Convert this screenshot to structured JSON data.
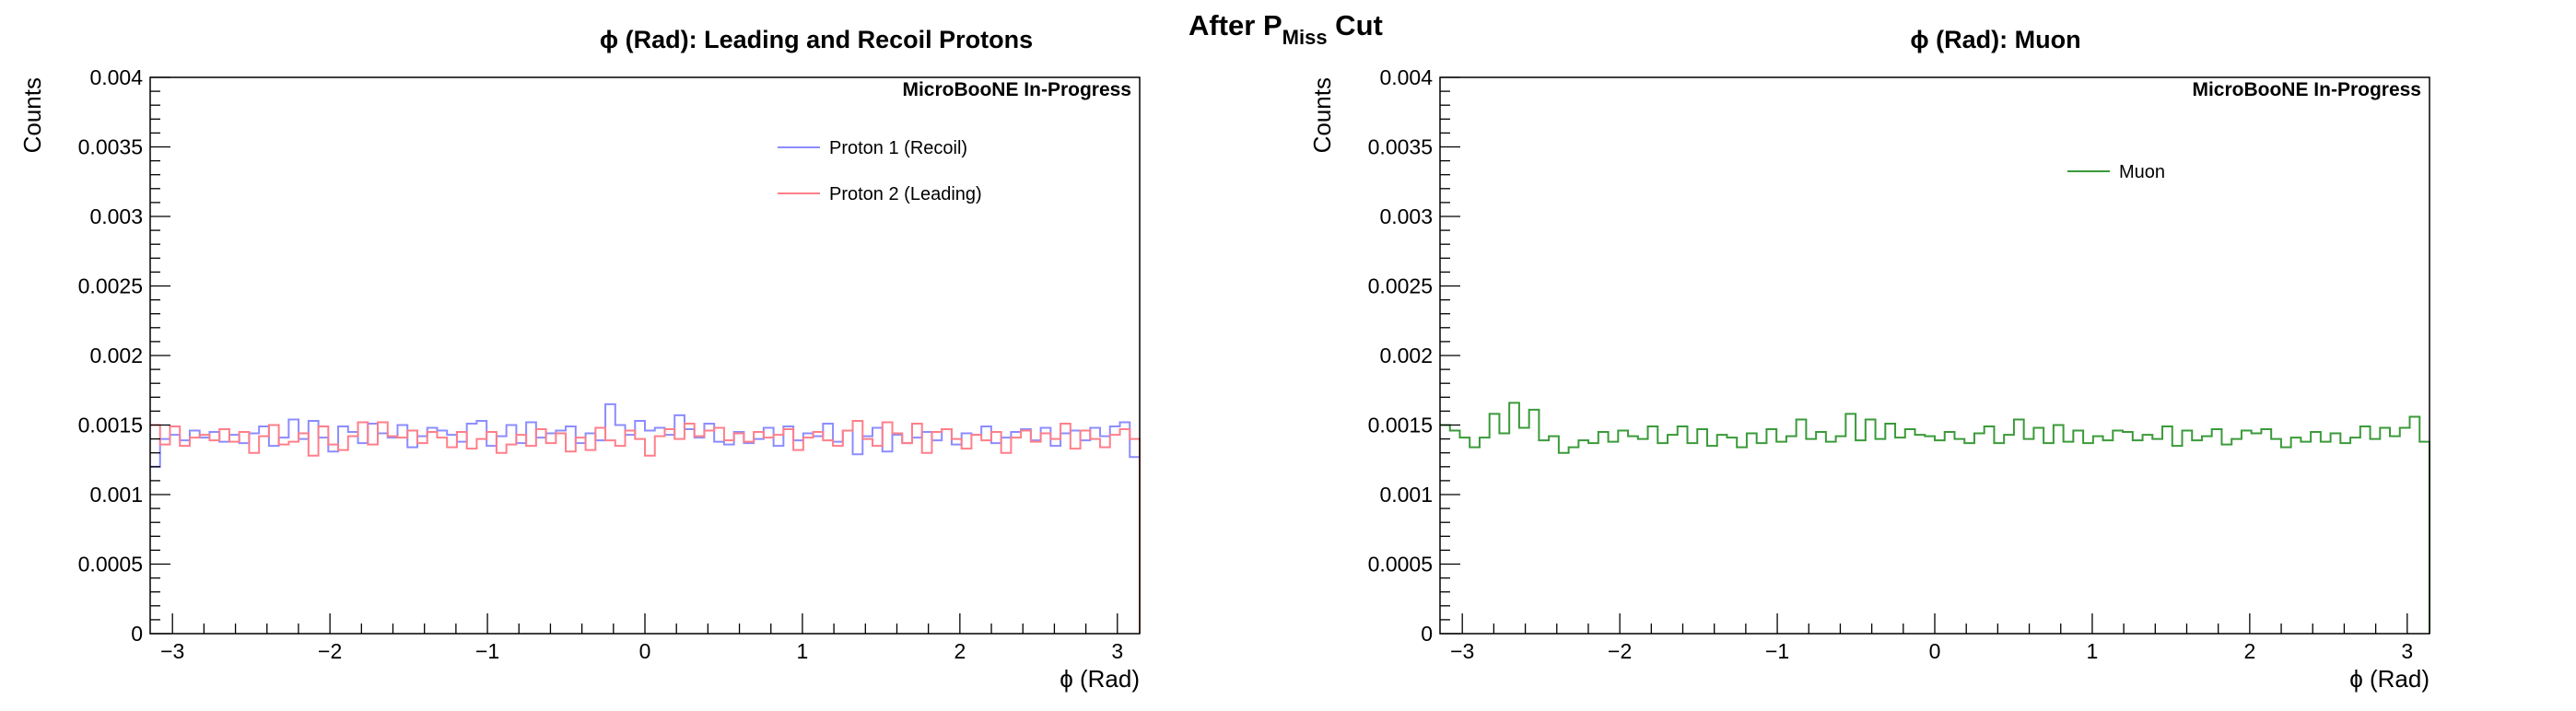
{
  "page": {
    "title_main": "After P",
    "title_sub": "Miss",
    "title_suffix": " Cut"
  },
  "colors": {
    "proton1": "#8c8cff",
    "proton2": "#ff7f8a",
    "muon": "#3a9a3a"
  },
  "chart_data": [
    {
      "type": "histogram",
      "title": "ϕ (Rad): Leading and Recoil Protons",
      "annotation": "MicroBooNE In-Progress",
      "xlabel": "ϕ (Rad)",
      "ylabel": "Counts",
      "xlim": [
        -3.14159,
        3.14159
      ],
      "ylim": [
        0,
        0.004
      ],
      "xticks": [
        -3,
        -2,
        -1,
        0,
        1,
        2,
        3
      ],
      "xtick_labels": [
        "−3",
        "−2",
        "−1",
        "0",
        "1",
        "2",
        "3"
      ],
      "yticks": [
        0,
        0.0005,
        0.001,
        0.0015,
        0.002,
        0.0025,
        0.003,
        0.0035,
        0.004
      ],
      "ytick_labels": [
        "0",
        "0.0005",
        "0.001",
        "0.0015",
        "0.002",
        "0.0025",
        "0.003",
        "0.0035",
        "0.004"
      ],
      "legend_position": "top-right",
      "series": [
        {
          "name": "Proton 1 (Recoil)",
          "color": "#8c8cff",
          "values": [
            0.0012,
            0.0014,
            0.00143,
            0.00139,
            0.00146,
            0.00141,
            0.00145,
            0.00138,
            0.00143,
            0.00137,
            0.00144,
            0.00149,
            0.00135,
            0.00141,
            0.00154,
            0.0014,
            0.00153,
            0.00141,
            0.00131,
            0.00149,
            0.00145,
            0.00137,
            0.00151,
            0.00144,
            0.00141,
            0.0015,
            0.00134,
            0.00142,
            0.00148,
            0.00146,
            0.00143,
            0.00138,
            0.00151,
            0.00153,
            0.00135,
            0.00142,
            0.0015,
            0.00137,
            0.00152,
            0.00141,
            0.00144,
            0.00146,
            0.00149,
            0.00137,
            0.00144,
            0.00139,
            0.00165,
            0.0015,
            0.00143,
            0.00153,
            0.00146,
            0.00148,
            0.00143,
            0.00157,
            0.00147,
            0.00141,
            0.00151,
            0.00138,
            0.00136,
            0.00145,
            0.00137,
            0.0014,
            0.00148,
            0.00135,
            0.00149,
            0.00139,
            0.00144,
            0.00142,
            0.00151,
            0.00138,
            0.00146,
            0.00129,
            0.00142,
            0.00148,
            0.00131,
            0.00143,
            0.00137,
            0.00141,
            0.00145,
            0.00139,
            0.00147,
            0.00136,
            0.00144,
            0.00143,
            0.00149,
            0.00137,
            0.00141,
            0.00145,
            0.00147,
            0.00139,
            0.00148,
            0.00135,
            0.00144,
            0.00146,
            0.00139,
            0.00148,
            0.00142,
            0.00149,
            0.00152,
            0.00127
          ]
        },
        {
          "name": "Proton 2 (Leading)",
          "color": "#ff7f8a",
          "values": [
            0.0015,
            0.00136,
            0.00149,
            0.00135,
            0.00141,
            0.00143,
            0.00139,
            0.00147,
            0.00138,
            0.00145,
            0.0013,
            0.00142,
            0.0015,
            0.00136,
            0.00138,
            0.00144,
            0.00128,
            0.00149,
            0.00136,
            0.00132,
            0.00142,
            0.00152,
            0.00136,
            0.00152,
            0.00142,
            0.00141,
            0.00146,
            0.00137,
            0.00145,
            0.00141,
            0.00134,
            0.00145,
            0.00133,
            0.0014,
            0.00145,
            0.0013,
            0.00136,
            0.00143,
            0.00135,
            0.00147,
            0.00137,
            0.00144,
            0.00131,
            0.00141,
            0.00132,
            0.00148,
            0.00139,
            0.00135,
            0.00146,
            0.0014,
            0.00128,
            0.00142,
            0.00147,
            0.0014,
            0.00151,
            0.00142,
            0.00146,
            0.00148,
            0.00139,
            0.00144,
            0.00138,
            0.00145,
            0.00141,
            0.00143,
            0.00147,
            0.00132,
            0.00141,
            0.00145,
            0.00139,
            0.00135,
            0.00146,
            0.00153,
            0.0014,
            0.00135,
            0.00152,
            0.00144,
            0.00137,
            0.00151,
            0.0013,
            0.00145,
            0.00147,
            0.0014,
            0.00133,
            0.00143,
            0.00139,
            0.00145,
            0.0013,
            0.00141,
            0.00146,
            0.00138,
            0.00144,
            0.0014,
            0.00151,
            0.00133,
            0.00146,
            0.0014,
            0.00134,
            0.00143,
            0.00147,
            0.0014
          ]
        }
      ]
    },
    {
      "type": "histogram",
      "title": "ϕ (Rad): Muon",
      "annotation": "MicroBooNE In-Progress",
      "xlabel": "ϕ (Rad)",
      "ylabel": "Counts",
      "xlim": [
        -3.14159,
        3.14159
      ],
      "ylim": [
        0,
        0.004
      ],
      "xticks": [
        -3,
        -2,
        -1,
        0,
        1,
        2,
        3
      ],
      "xtick_labels": [
        "−3",
        "−2",
        "−1",
        "0",
        "1",
        "2",
        "3"
      ],
      "yticks": [
        0,
        0.0005,
        0.001,
        0.0015,
        0.002,
        0.0025,
        0.003,
        0.0035,
        0.004
      ],
      "ytick_labels": [
        "0",
        "0.0005",
        "0.001",
        "0.0015",
        "0.002",
        "0.0025",
        "0.003",
        "0.0035",
        "0.004"
      ],
      "legend_position": "top-right",
      "series": [
        {
          "name": "Muon",
          "color": "#3a9a3a",
          "values": [
            0.0015,
            0.00146,
            0.00141,
            0.00134,
            0.00141,
            0.00158,
            0.00144,
            0.00166,
            0.00148,
            0.00161,
            0.00139,
            0.00142,
            0.0013,
            0.00134,
            0.00139,
            0.00137,
            0.00145,
            0.00138,
            0.00146,
            0.00142,
            0.0014,
            0.00149,
            0.00137,
            0.00143,
            0.00149,
            0.00137,
            0.00147,
            0.00135,
            0.00143,
            0.00141,
            0.00134,
            0.00144,
            0.00137,
            0.00147,
            0.00138,
            0.00142,
            0.00154,
            0.0014,
            0.00145,
            0.00138,
            0.00142,
            0.00158,
            0.00139,
            0.00154,
            0.0014,
            0.00151,
            0.00141,
            0.00147,
            0.00143,
            0.00142,
            0.00139,
            0.00145,
            0.0014,
            0.00137,
            0.00144,
            0.00149,
            0.00137,
            0.00143,
            0.00154,
            0.0014,
            0.00148,
            0.00137,
            0.0015,
            0.00138,
            0.00146,
            0.00137,
            0.00142,
            0.00139,
            0.00146,
            0.00145,
            0.00139,
            0.00143,
            0.0014,
            0.00149,
            0.00135,
            0.00146,
            0.00139,
            0.00142,
            0.00147,
            0.00136,
            0.0014,
            0.00146,
            0.00144,
            0.00147,
            0.0014,
            0.00134,
            0.00141,
            0.00138,
            0.00145,
            0.00138,
            0.00144,
            0.00137,
            0.00141,
            0.00149,
            0.0014,
            0.00148,
            0.00142,
            0.00148,
            0.00156,
            0.00138
          ]
        }
      ]
    }
  ]
}
